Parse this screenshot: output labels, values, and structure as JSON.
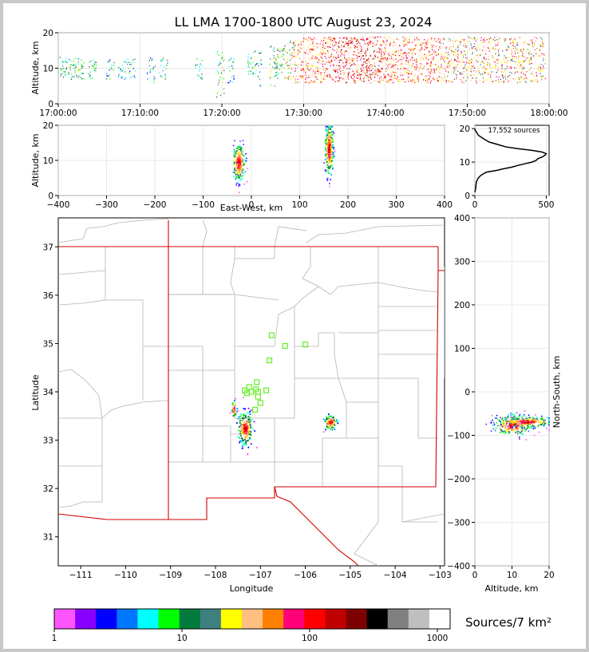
{
  "title": "LL LMA 1700-1800 UTC August 23, 2024",
  "time_height": {
    "ylabel": "Altitude, km",
    "x_ticks": [
      "17:00:00",
      "17:10:00",
      "17:20:00",
      "17:30:00",
      "17:40:00",
      "17:50:00",
      "18:00:00"
    ],
    "y_ticks": [
      "0",
      "10",
      "20"
    ]
  },
  "ew_panel": {
    "ylabel": "Altitude, km",
    "xlabel": "East-West, km",
    "x_ticks": [
      "−400",
      "−300",
      "−200",
      "−100",
      "0",
      "100",
      "200",
      "300",
      "400"
    ],
    "y_ticks": [
      "0",
      "10",
      "20"
    ]
  },
  "histogram": {
    "label": "17,552 sources",
    "x_ticks": [
      "0",
      "500"
    ],
    "y_ticks": [
      "0",
      "10",
      "20"
    ]
  },
  "plan_view": {
    "xlabel": "Longitude",
    "ylabel": "Latitude",
    "x_ticks": [
      "−111",
      "−110",
      "−109",
      "−108",
      "−107",
      "−106",
      "−105",
      "−104",
      "−103"
    ],
    "y_ticks": [
      "31",
      "32",
      "33",
      "34",
      "35",
      "36",
      "37"
    ]
  },
  "ns_panel": {
    "xlabel": "Altitude, km",
    "ylabel": "North-South, km",
    "x_ticks": [
      "0",
      "10",
      "20"
    ],
    "y_ticks": [
      "−400",
      "−300",
      "−200",
      "−100",
      "0",
      "100",
      "200",
      "300",
      "400"
    ]
  },
  "colorbar": {
    "label": "Sources/7 km²",
    "ticks": [
      "1",
      "10",
      "100",
      "1000"
    ],
    "colors": [
      "#ff55ff",
      "#8800ff",
      "#0000ff",
      "#0077ff",
      "#00ffff",
      "#00ff00",
      "#007a3d",
      "#3f7f7f",
      "#ffff00",
      "#ffbf80",
      "#ff8000",
      "#ff0077",
      "#ff0000",
      "#c00000",
      "#7f0000",
      "#000000",
      "#808080",
      "#bfbfbf",
      "#ffffff"
    ]
  },
  "chart_data": [
    {
      "type": "scatter",
      "panel": "time-height",
      "title": "LL LMA 1700-1800 UTC August 23, 2024",
      "ylabel": "Altitude, km",
      "xlim": [
        "17:00:00",
        "18:00:00"
      ],
      "ylim": [
        0,
        20
      ],
      "activity": [
        {
          "minute": 0.5,
          "alt": [
            7,
            14
          ],
          "density": 3
        },
        {
          "minute": 1.7,
          "alt": [
            7,
            13
          ],
          "density": 3
        },
        {
          "minute": 2.6,
          "alt": [
            7,
            13
          ],
          "density": 3
        },
        {
          "minute": 4.1,
          "alt": [
            7,
            13
          ],
          "density": 3
        },
        {
          "minute": 6.3,
          "alt": [
            7,
            13
          ],
          "density": 2
        },
        {
          "minute": 7.8,
          "alt": [
            7,
            13
          ],
          "density": 2
        },
        {
          "minute": 8.9,
          "alt": [
            6,
            13
          ],
          "density": 2
        },
        {
          "minute": 11.3,
          "alt": [
            6,
            14
          ],
          "density": 2
        },
        {
          "minute": 12.8,
          "alt": [
            7,
            13
          ],
          "density": 2
        },
        {
          "minute": 17.1,
          "alt": [
            7,
            13
          ],
          "density": 2
        },
        {
          "minute": 19.8,
          "alt": [
            2,
            16
          ],
          "density": 4
        },
        {
          "minute": 21.2,
          "alt": [
            6,
            14
          ],
          "density": 2
        },
        {
          "minute": 23.6,
          "alt": [
            7,
            15
          ],
          "density": 3
        },
        {
          "minute": 24.3,
          "alt": [
            5,
            15
          ],
          "density": 2
        },
        {
          "minute": 26.3,
          "alt": [
            5,
            17
          ],
          "density": 4
        },
        {
          "minute": 27.0,
          "alt": [
            8,
            16
          ],
          "density": 4
        },
        {
          "minute": 28.0,
          "alt": [
            7,
            18
          ],
          "density": 5
        },
        {
          "minute": 29.0,
          "alt": [
            6,
            18
          ],
          "density": 6
        },
        {
          "minute": 30.0,
          "alt": [
            6,
            19
          ],
          "density": 7
        },
        {
          "minute": 31.0,
          "alt": [
            6,
            19
          ],
          "density": 7
        },
        {
          "minute": 32.0,
          "alt": [
            6,
            19
          ],
          "density": 7
        },
        {
          "minute": 33.0,
          "alt": [
            7,
            19
          ],
          "density": 7
        },
        {
          "minute": 34.0,
          "alt": [
            6,
            19
          ],
          "density": 8
        },
        {
          "minute": 35.0,
          "alt": [
            6,
            19
          ],
          "density": 8
        },
        {
          "minute": 36.0,
          "alt": [
            6,
            19
          ],
          "density": 8
        },
        {
          "minute": 37.0,
          "alt": [
            6,
            19
          ],
          "density": 8
        },
        {
          "minute": 38.0,
          "alt": [
            6,
            19
          ],
          "density": 8
        },
        {
          "minute": 39.0,
          "alt": [
            6,
            19
          ],
          "density": 8
        },
        {
          "minute": 40.0,
          "alt": [
            6,
            19
          ],
          "density": 7
        },
        {
          "minute": 41.0,
          "alt": [
            6,
            19
          ],
          "density": 7
        },
        {
          "minute": 42.0,
          "alt": [
            6,
            19
          ],
          "density": 7
        },
        {
          "minute": 43.0,
          "alt": [
            6,
            19
          ],
          "density": 7
        },
        {
          "minute": 44.0,
          "alt": [
            6,
            19
          ],
          "density": 7
        },
        {
          "minute": 45.0,
          "alt": [
            6,
            19
          ],
          "density": 7
        },
        {
          "minute": 46.0,
          "alt": [
            6,
            19
          ],
          "density": 7
        },
        {
          "minute": 47.0,
          "alt": [
            6,
            19
          ],
          "density": 6
        },
        {
          "minute": 48.0,
          "alt": [
            6,
            19
          ],
          "density": 6
        },
        {
          "minute": 49.0,
          "alt": [
            6,
            19
          ],
          "density": 6
        },
        {
          "minute": 50.0,
          "alt": [
            6,
            19
          ],
          "density": 6
        },
        {
          "minute": 51.0,
          "alt": [
            6,
            19
          ],
          "density": 6
        },
        {
          "minute": 52.0,
          "alt": [
            6,
            19
          ],
          "density": 6
        },
        {
          "minute": 53.0,
          "alt": [
            6,
            19
          ],
          "density": 6
        },
        {
          "minute": 54.0,
          "alt": [
            6,
            19
          ],
          "density": 6
        },
        {
          "minute": 55.0,
          "alt": [
            6,
            19
          ],
          "density": 6
        },
        {
          "minute": 56.0,
          "alt": [
            6,
            19
          ],
          "density": 6
        },
        {
          "minute": 57.0,
          "alt": [
            6,
            19
          ],
          "density": 6
        },
        {
          "minute": 58.0,
          "alt": [
            6,
            19
          ],
          "density": 6
        },
        {
          "minute": 59.0,
          "alt": [
            6,
            19
          ],
          "density": 6
        }
      ]
    },
    {
      "type": "scatter",
      "panel": "east-west vs altitude",
      "xlabel": "East-West, km",
      "ylabel": "Altitude, km",
      "xlim": [
        -400,
        400
      ],
      "ylim": [
        0,
        20
      ],
      "clusters": [
        {
          "x": -27,
          "y": 9.5,
          "sx": 6,
          "sy": 2.5,
          "n": 260
        },
        {
          "x": 160,
          "y": 13.5,
          "sx": 4,
          "sy": 3.5,
          "n": 320
        }
      ]
    },
    {
      "type": "line",
      "panel": "altitude histogram",
      "x": [
        0,
        5,
        10,
        20,
        40,
        80,
        150,
        200,
        260,
        300,
        350,
        400,
        430,
        440,
        470,
        490,
        500,
        470,
        400,
        300,
        220,
        180,
        140,
        100,
        60,
        25,
        10,
        3,
        0
      ],
      "y": [
        1,
        2,
        4,
        5,
        6,
        7,
        7.5,
        8,
        8.5,
        9,
        9.5,
        10,
        10.5,
        11,
        11.5,
        12,
        12.5,
        13,
        13.5,
        14,
        14.5,
        15,
        15.5,
        16,
        17,
        18,
        19,
        19.5,
        20
      ],
      "xlim": [
        0,
        520
      ],
      "ylim": [
        0,
        21
      ]
    },
    {
      "type": "heatmap",
      "panel": "plan view",
      "xlabel": "Longitude",
      "ylabel": "Latitude",
      "xlim": [
        -111.5,
        -102.9
      ],
      "ylim": [
        30.4,
        37.6
      ],
      "clusters": [
        {
          "lon": -107.35,
          "lat": 33.25,
          "slon": 0.08,
          "slat": 0.17,
          "n": 220
        },
        {
          "lon": -107.6,
          "lat": 33.65,
          "slon": 0.03,
          "slat": 0.08,
          "n": 30
        },
        {
          "lon": -105.45,
          "lat": 33.38,
          "slon": 0.07,
          "slat": 0.07,
          "n": 110
        }
      ],
      "stations": [
        {
          "lon": -106.75,
          "lat": 35.17
        },
        {
          "lon": -106.45,
          "lat": 34.95
        },
        {
          "lon": -106.0,
          "lat": 34.98
        },
        {
          "lon": -106.8,
          "lat": 34.65
        },
        {
          "lon": -107.08,
          "lat": 34.2
        },
        {
          "lon": -107.25,
          "lat": 34.1
        },
        {
          "lon": -107.1,
          "lat": 34.05
        },
        {
          "lon": -107.35,
          "lat": 34.03
        },
        {
          "lon": -107.2,
          "lat": 34.0
        },
        {
          "lon": -107.05,
          "lat": 34.0
        },
        {
          "lon": -106.87,
          "lat": 34.03
        },
        {
          "lon": -107.3,
          "lat": 33.97
        },
        {
          "lon": -107.05,
          "lat": 33.9
        },
        {
          "lon": -107.0,
          "lat": 33.77
        },
        {
          "lon": -107.12,
          "lat": 33.63
        }
      ]
    },
    {
      "type": "scatter",
      "panel": "altitude vs north-south",
      "xlabel": "Altitude, km",
      "ylabel": "North-South, km",
      "xlim": [
        0,
        20
      ],
      "ylim": [
        -400,
        400
      ],
      "clusters": [
        {
          "x": 10,
          "y": -75,
          "sx": 2.5,
          "sy": 12,
          "n": 260
        },
        {
          "x": 14,
          "y": -68,
          "sx": 3.5,
          "sy": 6,
          "n": 220
        }
      ]
    }
  ]
}
